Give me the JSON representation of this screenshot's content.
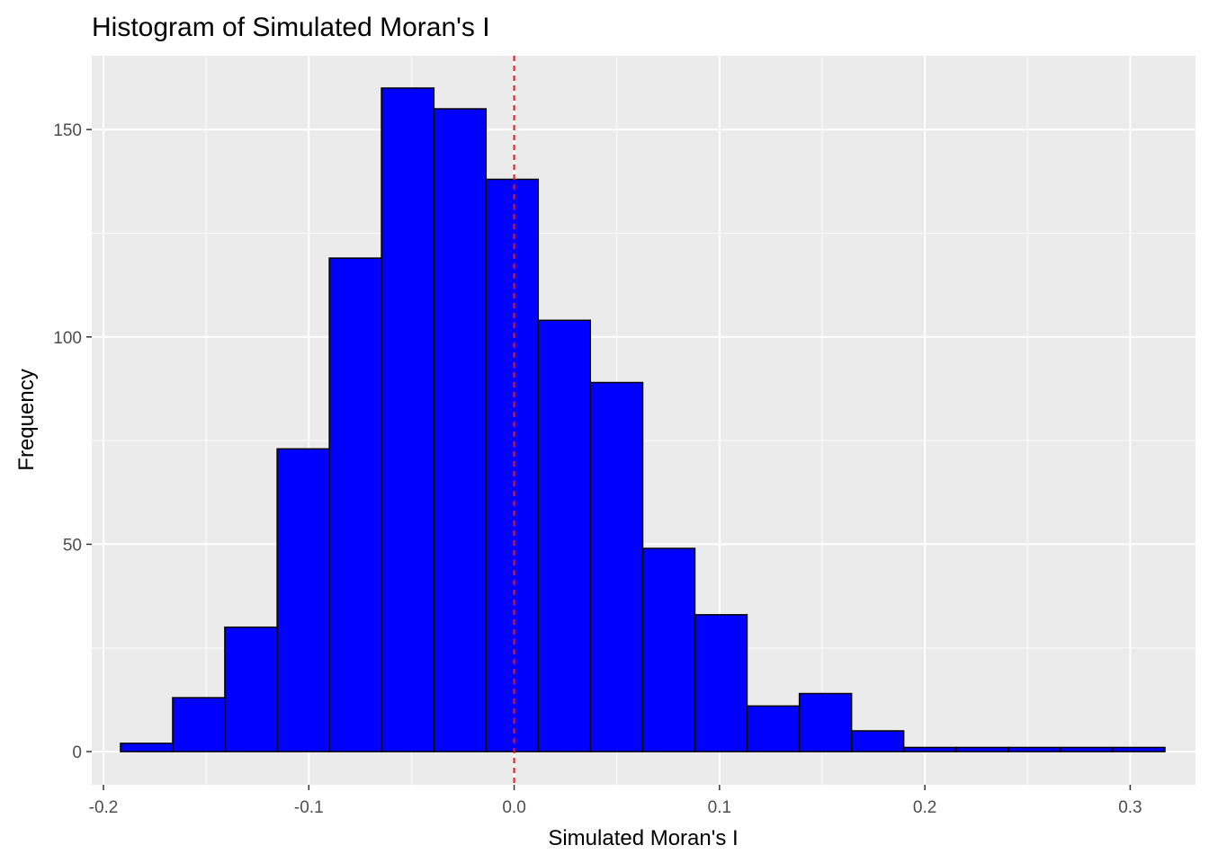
{
  "chart_data": {
    "type": "bar",
    "title": "Histogram of Simulated Moran's I",
    "xlabel": "Simulated Moran's I",
    "ylabel": "Frequency",
    "xlim": [
      -0.2057,
      0.3318
    ],
    "ylim": [
      -8,
      167.8
    ],
    "x_ticks": [
      -0.2,
      -0.1,
      0.0,
      0.1,
      0.2,
      0.3
    ],
    "x_tick_labels": [
      "-0.2",
      "-0.1",
      "0.0",
      "0.1",
      "0.2",
      "0.3"
    ],
    "y_ticks": [
      0,
      50,
      100,
      150
    ],
    "y_tick_labels": [
      "0",
      "50",
      "100",
      "150"
    ],
    "grid": true,
    "bins": [
      {
        "x0": -0.1917,
        "x1": -0.1663,
        "count": 2
      },
      {
        "x0": -0.1663,
        "x1": -0.1409,
        "count": 13
      },
      {
        "x0": -0.1409,
        "x1": -0.1154,
        "count": 30
      },
      {
        "x0": -0.1154,
        "x1": -0.09,
        "count": 73
      },
      {
        "x0": -0.09,
        "x1": -0.0646,
        "count": 119
      },
      {
        "x0": -0.0646,
        "x1": -0.0391,
        "count": 160
      },
      {
        "x0": -0.0391,
        "x1": -0.0137,
        "count": 155
      },
      {
        "x0": -0.0137,
        "x1": 0.0117,
        "count": 138
      },
      {
        "x0": 0.0117,
        "x1": 0.0371,
        "count": 104
      },
      {
        "x0": 0.0371,
        "x1": 0.0626,
        "count": 89
      },
      {
        "x0": 0.0626,
        "x1": 0.088,
        "count": 49
      },
      {
        "x0": 0.088,
        "x1": 0.1134,
        "count": 33
      },
      {
        "x0": 0.1134,
        "x1": 0.1389,
        "count": 11
      },
      {
        "x0": 0.1389,
        "x1": 0.1643,
        "count": 14
      },
      {
        "x0": 0.1643,
        "x1": 0.1897,
        "count": 5
      },
      {
        "x0": 0.1897,
        "x1": 0.2151,
        "count": 1
      },
      {
        "x0": 0.2151,
        "x1": 0.2406,
        "count": 1
      },
      {
        "x0": 0.2406,
        "x1": 0.266,
        "count": 1
      },
      {
        "x0": 0.266,
        "x1": 0.2914,
        "count": 1
      },
      {
        "x0": 0.2914,
        "x1": 0.3169,
        "count": 1
      }
    ],
    "reference_line": {
      "x": 0.0,
      "style": "dashed",
      "color": "#e41a1c"
    },
    "colors": {
      "bar_fill": "#0000ff",
      "bar_stroke": "#000000",
      "panel_background": "#ebebeb",
      "grid": "#ffffff"
    }
  }
}
